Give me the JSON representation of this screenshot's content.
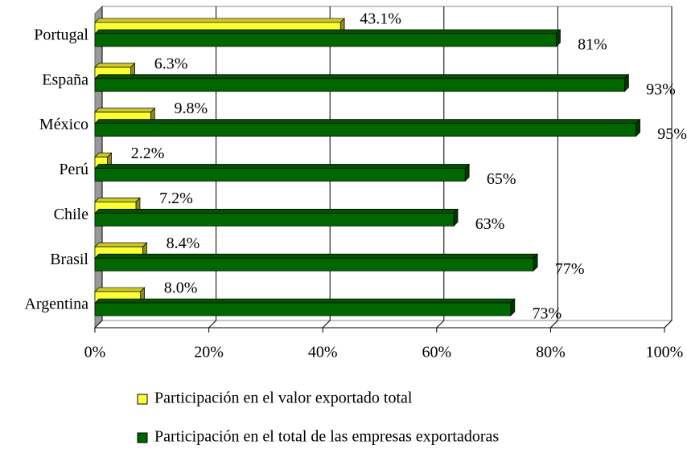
{
  "chart_data": {
    "type": "bar",
    "orientation": "horizontal",
    "categories": [
      "Portugal",
      "España",
      "México",
      "Perú",
      "Chile",
      "Brasil",
      "Argentina"
    ],
    "series": [
      {
        "name": "Participación en el valor exportado total",
        "color": "#ffff33",
        "values": [
          43.1,
          6.3,
          9.8,
          2.2,
          7.2,
          8.4,
          8.0
        ],
        "value_labels": [
          "43.1%",
          "6.3%",
          "9.8%",
          "2.2%",
          "7.2%",
          "8.4%",
          "8.0%"
        ]
      },
      {
        "name": "Participación en el total de las empresas exportadoras",
        "color": "#006600",
        "values": [
          81,
          93,
          95,
          65,
          63,
          77,
          73
        ],
        "value_labels": [
          "81%",
          "93%",
          "95%",
          "65%",
          "63%",
          "77%",
          "73%"
        ]
      }
    ],
    "xlim": [
      0,
      100
    ],
    "xticks": [
      {
        "value": 0,
        "label": "0%"
      },
      {
        "value": 20,
        "label": "20%"
      },
      {
        "value": 40,
        "label": "40%"
      },
      {
        "value": 60,
        "label": "60%"
      },
      {
        "value": 80,
        "label": "80%"
      },
      {
        "value": 100,
        "label": "100%"
      }
    ],
    "grid": true,
    "legend": "bottom"
  }
}
